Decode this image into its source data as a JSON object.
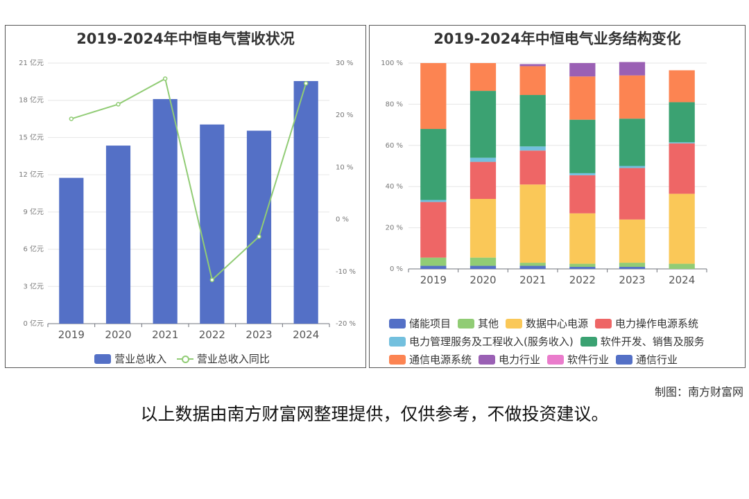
{
  "charts": {
    "left": {
      "title": "2019-2024年中恒电气营收状况",
      "legend": [
        "营业总收入",
        "营业总收入同比"
      ]
    },
    "right": {
      "title": "2019-2024年中恒电气业务结构变化",
      "legend_rows": [
        [
          "储能项目",
          "其他",
          "数据中心电源",
          "电力操作电源系统"
        ],
        [
          "电力管理服务及工程收入(服务收入)",
          "软件开发、销售及服务"
        ],
        [
          "通信电源系统",
          "电力行业",
          "软件行业",
          "通信行业"
        ]
      ]
    }
  },
  "credit": "制图：南方财富网",
  "disclaimer": "以上数据由南方财富网整理提供，仅供参考，不做投资建议。",
  "chart_data": [
    {
      "type": "bar",
      "title": "2019-2024年中恒电气营收状况",
      "categories": [
        "2019",
        "2020",
        "2021",
        "2022",
        "2023",
        "2024"
      ],
      "y_ticks": [
        "0 亿元",
        "3 亿元",
        "6 亿元",
        "9 亿元",
        "12 亿元",
        "15 亿元",
        "18 亿元",
        "21 亿元"
      ],
      "y2_ticks": [
        "-20 %",
        "-10 %",
        "0 %",
        "10 %",
        "20 %",
        "30 %"
      ],
      "ylim": [
        0,
        21
      ],
      "y2lim": [
        -20,
        30
      ],
      "series": [
        {
          "name": "营业总收入",
          "type": "bar",
          "color": "#5470c6",
          "values": [
            11.75,
            14.35,
            18.1,
            16.05,
            15.55,
            19.55
          ]
        },
        {
          "name": "营业总收入同比",
          "type": "line",
          "color": "#91cc75",
          "axis": "right",
          "values": [
            19.3,
            22.1,
            27.0,
            -11.6,
            -3.3,
            26.1
          ]
        }
      ]
    },
    {
      "type": "bar",
      "stacked": true,
      "title": "2019-2024年中恒电气业务结构变化",
      "categories": [
        "2019",
        "2020",
        "2021",
        "2022",
        "2023",
        "2024"
      ],
      "y_ticks": [
        "0 %",
        "20 %",
        "40 %",
        "60 %",
        "80 %",
        "100 %"
      ],
      "ylim": [
        0,
        100
      ],
      "series": [
        {
          "name": "储能项目",
          "color": "#5470c6",
          "values": [
            1.5,
            1.5,
            1.5,
            1.0,
            1.0,
            0
          ]
        },
        {
          "name": "其他",
          "color": "#91cc75",
          "values": [
            4.0,
            4.0,
            1.5,
            1.5,
            2.0,
            2.5
          ]
        },
        {
          "name": "数据中心电源",
          "color": "#fac858",
          "values": [
            0,
            28.5,
            38.0,
            24.5,
            21.0,
            34.0
          ]
        },
        {
          "name": "电力操作电源系统",
          "color": "#ee6666",
          "values": [
            27.0,
            18.0,
            16.5,
            18.5,
            25.0,
            24.5
          ]
        },
        {
          "name": "电力管理服务及工程收入(服务收入)",
          "color": "#73c0de",
          "values": [
            1.0,
            2.0,
            2.0,
            1.0,
            1.0,
            0.5
          ]
        },
        {
          "name": "软件开发、销售及服务",
          "color": "#3ba272",
          "values": [
            34.5,
            32.5,
            25.0,
            26.0,
            23.0,
            19.5
          ]
        },
        {
          "name": "通信电源系统",
          "color": "#fc8452",
          "values": [
            32.0,
            13.5,
            14.0,
            21.0,
            21.0,
            15.5
          ]
        },
        {
          "name": "电力行业",
          "color": "#9a60b4",
          "values": [
            0,
            0,
            1.0,
            6.5,
            6.5,
            0
          ]
        },
        {
          "name": "软件行业",
          "color": "#ea7ccc",
          "values": [
            0,
            0,
            0,
            0,
            0,
            0
          ]
        },
        {
          "name": "通信行业",
          "color": "#5470c6",
          "values": [
            0,
            0,
            0,
            0,
            0,
            0
          ]
        }
      ]
    }
  ]
}
